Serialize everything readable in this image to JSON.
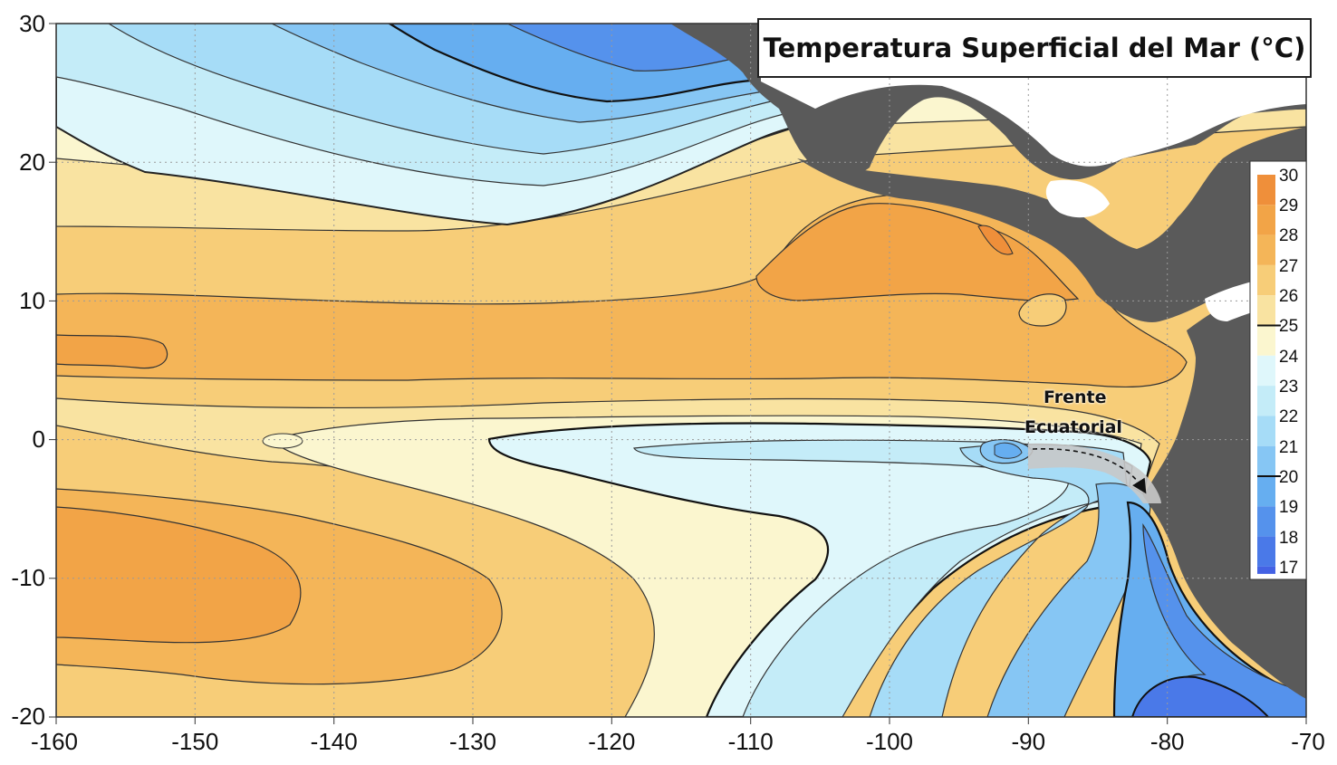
{
  "title": "Temperatura Superficial del Mar (°C)",
  "annotation": {
    "line1": "Frente",
    "line2": "Ecuatorial"
  },
  "axes": {
    "x_ticks": [
      "-160",
      "-150",
      "-140",
      "-130",
      "-120",
      "-110",
      "-100",
      "-90",
      "-80",
      "-70"
    ],
    "y_ticks": [
      "30",
      "20",
      "10",
      "0",
      "-10",
      "-20"
    ],
    "x_range": [
      -160,
      -70
    ],
    "y_range": [
      -20,
      30
    ]
  },
  "colorbar": {
    "levels": [
      "30",
      "29",
      "28",
      "27",
      "26",
      "25",
      "24",
      "23",
      "22",
      "21",
      "20",
      "19",
      "18",
      "17"
    ],
    "colors": [
      "#ef8f3a",
      "#f2a447",
      "#f4b558",
      "#f7cd78",
      "#f9e3a1",
      "#fbf6cf",
      "#dff7fb",
      "#c4ecf8",
      "#a6dcf7",
      "#86c6f4",
      "#66aef0",
      "#5592ec",
      "#4a79e8",
      "#4462e4"
    ]
  },
  "colors": {
    "land": "#5a5a5a",
    "contour": "#333333",
    "grid": "#9a9a9a"
  }
}
